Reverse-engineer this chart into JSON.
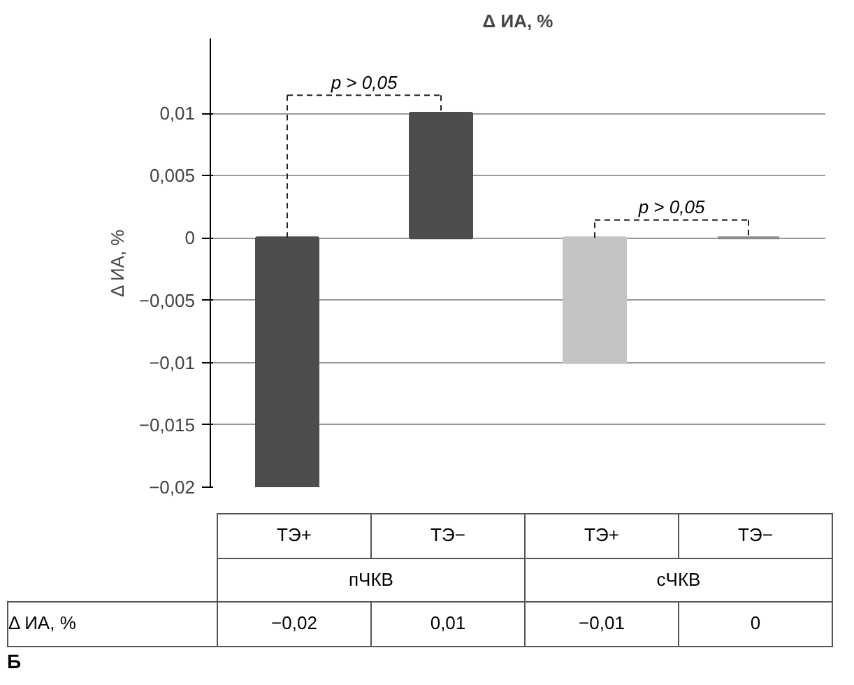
{
  "chart_data": {
    "type": "bar",
    "title": "Δ ИА, %",
    "ylabel": "Δ ИА, %",
    "categories": [
      "ТЭ+",
      "ТЭ−",
      "ТЭ+",
      "ТЭ−"
    ],
    "series": [
      {
        "name": "Δ ИА, %",
        "values": [
          -0.02,
          0.01,
          -0.01,
          0
        ],
        "colors": [
          "#4d4d4d",
          "#4d4d4d",
          "#c4c4c4",
          "#8c8c8c"
        ],
        "value_labels": [
          "−0,02",
          "0,01",
          "−0,01",
          "0"
        ]
      }
    ],
    "ylim": [
      -0.02,
      0.016
    ],
    "yticks": [
      {
        "value": -0.02,
        "label": "−0,02"
      },
      {
        "value": -0.015,
        "label": "−0,015"
      },
      {
        "value": -0.01,
        "label": "−0,01"
      },
      {
        "value": -0.005,
        "label": "−0,005"
      },
      {
        "value": 0,
        "label": "0"
      },
      {
        "value": 0.005,
        "label": "0,005"
      },
      {
        "value": 0.01,
        "label": "0,01"
      }
    ],
    "grid": "y",
    "legend": false,
    "data_labels": true,
    "annotations": [
      "p > 0,05",
      "p > 0,05",
      "пЧКВ",
      "сЧКВ",
      "Б"
    ]
  }
}
